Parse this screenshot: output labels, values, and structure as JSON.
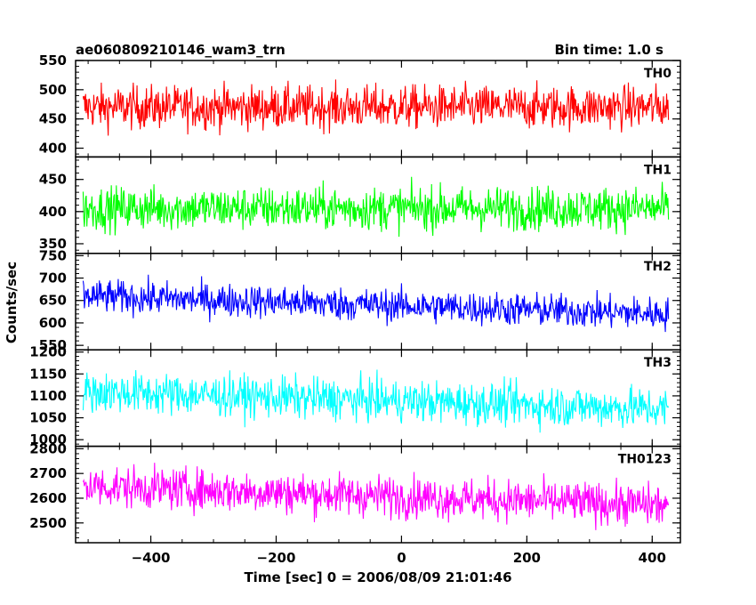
{
  "header": {
    "left_title": "ae060809210146_wam3_trn",
    "right_title": "Bin time: 1.0 s"
  },
  "chart_data": {
    "type": "line",
    "title": "ae060809210146_wam3_trn",
    "subtitle": "Bin time: 1.0 s",
    "xlabel": "Time [sec] 0 = 2006/08/09 21:01:46",
    "ylabel": "Counts/sec",
    "xlim": [
      -520,
      445
    ],
    "x_ticks": [
      -400,
      -200,
      0,
      200,
      400
    ],
    "x_tick_labels": [
      "−400",
      "−200",
      "0",
      "200",
      "400"
    ],
    "x_range": [
      -508,
      426
    ],
    "bin_time_s": 1.0,
    "grid": false,
    "panels": [
      {
        "name": "TH0",
        "color": "#ff0000",
        "ylim": [
          385,
          550
        ],
        "yticks": [
          400,
          450,
          500,
          550
        ],
        "mean_start": 470,
        "mean_end": 470,
        "spread": 22
      },
      {
        "name": "TH1",
        "color": "#00ff00",
        "ylim": [
          335,
          485
        ],
        "yticks": [
          350,
          400,
          450
        ],
        "mean_start": 405,
        "mean_end": 405,
        "spread": 20
      },
      {
        "name": "TH2",
        "color": "#0000ff",
        "ylim": [
          540,
          755
        ],
        "yticks": [
          550,
          600,
          650,
          700,
          750
        ],
        "mean_start": 660,
        "mean_end": 620,
        "spread": 22
      },
      {
        "name": "TH3",
        "color": "#00ffff",
        "ylim": [
          985,
          1205
        ],
        "yticks": [
          1000,
          1050,
          1100,
          1150,
          1200
        ],
        "mean_start": 1110,
        "mean_end": 1070,
        "spread": 28
      },
      {
        "name": "TH0123",
        "color": "#ff00ff",
        "ylim": [
          2420,
          2810
        ],
        "yticks": [
          2500,
          2600,
          2700,
          2800
        ],
        "mean_start": 2650,
        "mean_end": 2570,
        "spread": 50
      }
    ]
  }
}
